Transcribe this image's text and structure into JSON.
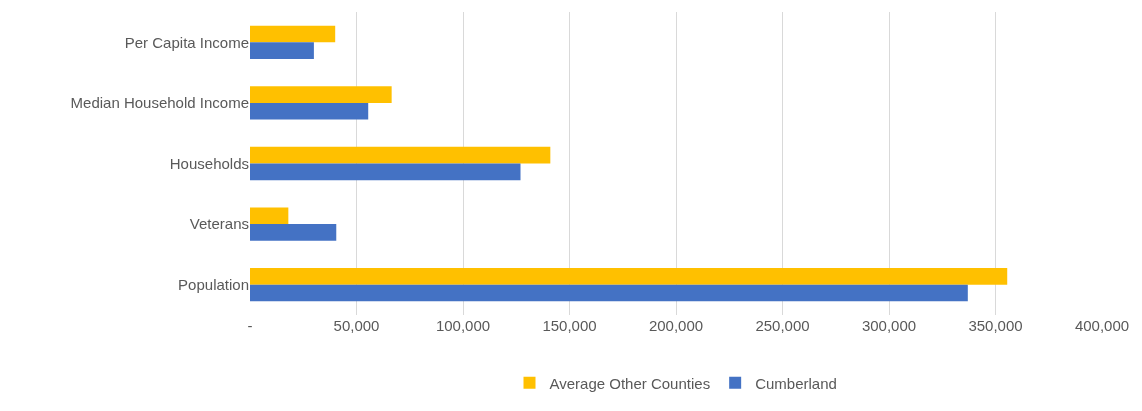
{
  "chart_data": {
    "type": "bar",
    "orientation": "horizontal",
    "categories": [
      "Per Capita Income",
      "Median Household Income",
      "Households",
      "Veterans",
      "Population"
    ],
    "series": [
      {
        "name": "Average Other Counties",
        "color": "#ffc000",
        "values": [
          40000,
          66500,
          141000,
          18000,
          355500
        ]
      },
      {
        "name": "Cumberland",
        "color": "#4472c4",
        "values": [
          30000,
          55500,
          127000,
          40500,
          337000
        ]
      }
    ],
    "xlim": [
      0,
      400000
    ],
    "xticks": [
      {
        "value": 0,
        "label": "-"
      },
      {
        "value": 50000,
        "label": "50,000"
      },
      {
        "value": 100000,
        "label": "100,000"
      },
      {
        "value": 150000,
        "label": "150,000"
      },
      {
        "value": 200000,
        "label": "200,000"
      },
      {
        "value": 250000,
        "label": "250,000"
      },
      {
        "value": 300000,
        "label": "300,000"
      },
      {
        "value": 350000,
        "label": "350,000"
      },
      {
        "value": 400000,
        "label": "400,000"
      }
    ],
    "grid": "x",
    "legend": "bottom"
  }
}
